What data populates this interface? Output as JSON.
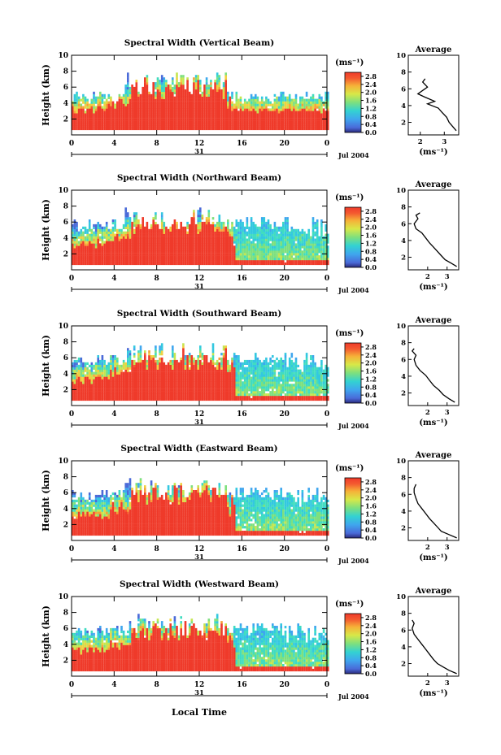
{
  "figure": {
    "x_axis_title": "Local Time",
    "date_text": "Jul 2004",
    "day_label": "31",
    "unit_label": "(ms⁻¹)",
    "average_title": "Average"
  },
  "chart_data": [
    {
      "type": "heatmap",
      "title": "Spectral Width (Vertical Beam)",
      "ylabel": "Height (km)",
      "xlim": [
        0,
        24
      ],
      "ylim": [
        0,
        10
      ],
      "x_ticks": [
        "0",
        "4",
        "8",
        "12",
        "16",
        "20",
        "0"
      ],
      "y_ticks": [
        "2",
        "4",
        "6",
        "8",
        "10"
      ],
      "colorbar_ticks": [
        "2.8",
        "2.4",
        "2.0",
        "1.6",
        "1.2",
        "0.8",
        "0.4",
        "0.0"
      ],
      "colorbar_range": [
        0.0,
        3.0
      ],
      "profile": {
        "title": "Average",
        "xlabel": "(ms⁻¹)",
        "x_ticks": [
          "2",
          "3"
        ],
        "y_ticks": [
          "2",
          "4",
          "6",
          "8",
          "10"
        ],
        "xlim": [
          1.5,
          3.6
        ],
        "ylim": [
          0.5,
          10
        ],
        "points": [
          [
            3.5,
            1.0
          ],
          [
            3.35,
            1.5
          ],
          [
            3.2,
            2.0
          ],
          [
            3.1,
            2.6
          ],
          [
            2.9,
            3.2
          ],
          [
            2.75,
            3.7
          ],
          [
            2.3,
            4.2
          ],
          [
            2.6,
            4.5
          ],
          [
            2.2,
            5.0
          ],
          [
            1.9,
            5.4
          ],
          [
            2.1,
            5.8
          ],
          [
            2.3,
            6.2
          ],
          [
            2.1,
            6.8
          ],
          [
            2.2,
            7.2
          ]
        ]
      }
    },
    {
      "type": "heatmap",
      "title": "Spectral Width (Northward Beam)",
      "ylabel": "Height (km)",
      "xlim": [
        0,
        24
      ],
      "ylim": [
        0,
        10
      ],
      "x_ticks": [
        "0",
        "4",
        "8",
        "12",
        "16",
        "20",
        "0"
      ],
      "y_ticks": [
        "2",
        "4",
        "6",
        "8",
        "10"
      ],
      "colorbar_ticks": [
        "2.8",
        "2.4",
        "2.0",
        "1.6",
        "1.2",
        "0.8",
        "0.4",
        "0.0"
      ],
      "colorbar_range": [
        0.0,
        3.0
      ],
      "profile": {
        "title": "Average",
        "xlabel": "(ms⁻¹)",
        "x_ticks": [
          "2",
          "3"
        ],
        "y_ticks": [
          "2",
          "4",
          "6",
          "8",
          "10"
        ],
        "xlim": [
          1.0,
          3.6
        ],
        "ylim": [
          0.5,
          10
        ],
        "points": [
          [
            3.5,
            0.9
          ],
          [
            3.2,
            1.3
          ],
          [
            2.9,
            1.7
          ],
          [
            2.7,
            2.2
          ],
          [
            2.5,
            2.7
          ],
          [
            2.3,
            3.2
          ],
          [
            2.1,
            3.7
          ],
          [
            1.9,
            4.3
          ],
          [
            1.7,
            4.9
          ],
          [
            1.4,
            5.4
          ],
          [
            1.3,
            6.0
          ],
          [
            1.5,
            6.6
          ],
          [
            1.4,
            7.0
          ],
          [
            1.6,
            7.3
          ]
        ]
      }
    },
    {
      "type": "heatmap",
      "title": "Spectral Width (Southward Beam)",
      "ylabel": "Height (km)",
      "xlim": [
        0,
        24
      ],
      "ylim": [
        0,
        10
      ],
      "x_ticks": [
        "0",
        "4",
        "8",
        "12",
        "16",
        "20",
        "0"
      ],
      "y_ticks": [
        "2",
        "4",
        "6",
        "8",
        "10"
      ],
      "colorbar_ticks": [
        "2.8",
        "2.4",
        "2.0",
        "1.6",
        "1.2",
        "0.8",
        "0.4",
        "0.0"
      ],
      "colorbar_range": [
        0.0,
        3.0
      ],
      "profile": {
        "title": "Average",
        "xlabel": "(ms⁻¹)",
        "x_ticks": [
          "2",
          "3"
        ],
        "y_ticks": [
          "2",
          "4",
          "6",
          "8",
          "10"
        ],
        "xlim": [
          1.0,
          3.6
        ],
        "ylim": [
          0.5,
          10
        ],
        "points": [
          [
            3.4,
            0.9
          ],
          [
            3.1,
            1.3
          ],
          [
            2.8,
            1.8
          ],
          [
            2.6,
            2.3
          ],
          [
            2.3,
            2.9
          ],
          [
            2.1,
            3.5
          ],
          [
            1.9,
            4.1
          ],
          [
            1.6,
            4.7
          ],
          [
            1.4,
            5.3
          ],
          [
            1.3,
            6.0
          ],
          [
            1.4,
            6.5
          ],
          [
            1.2,
            7.0
          ],
          [
            1.3,
            7.3
          ]
        ]
      }
    },
    {
      "type": "heatmap",
      "title": "Spectral Width (Eastward Beam)",
      "ylabel": "Height (km)",
      "xlim": [
        0,
        24
      ],
      "ylim": [
        0,
        10
      ],
      "x_ticks": [
        "0",
        "4",
        "8",
        "12",
        "16",
        "20",
        "0"
      ],
      "y_ticks": [
        "2",
        "4",
        "6",
        "8",
        "10"
      ],
      "colorbar_ticks": [
        "2.8",
        "2.4",
        "2.0",
        "1.6",
        "1.2",
        "0.8",
        "0.4",
        "0.0"
      ],
      "colorbar_range": [
        0.0,
        3.0
      ],
      "profile": {
        "title": "Average",
        "xlabel": "(ms⁻¹)",
        "x_ticks": [
          "2",
          "3"
        ],
        "y_ticks": [
          "2",
          "4",
          "6",
          "8",
          "10"
        ],
        "xlim": [
          1.0,
          3.6
        ],
        "ylim": [
          0.5,
          10
        ],
        "points": [
          [
            3.5,
            0.8
          ],
          [
            3.1,
            1.2
          ],
          [
            2.7,
            1.6
          ],
          [
            2.5,
            2.1
          ],
          [
            2.3,
            2.6
          ],
          [
            2.1,
            3.1
          ],
          [
            1.9,
            3.7
          ],
          [
            1.7,
            4.3
          ],
          [
            1.5,
            4.9
          ],
          [
            1.4,
            5.5
          ],
          [
            1.3,
            6.2
          ],
          [
            1.3,
            6.7
          ],
          [
            1.4,
            7.2
          ]
        ]
      }
    },
    {
      "type": "heatmap",
      "title": "Spectral Width (Westward Beam)",
      "ylabel": "Height (km)",
      "xlim": [
        0,
        24
      ],
      "ylim": [
        0,
        10
      ],
      "x_ticks": [
        "0",
        "4",
        "8",
        "12",
        "16",
        "20",
        "0"
      ],
      "y_ticks": [
        "2",
        "4",
        "6",
        "8",
        "10"
      ],
      "colorbar_ticks": [
        "2.8",
        "2.4",
        "2.0",
        "1.6",
        "1.2",
        "0.8",
        "0.4",
        "0.0"
      ],
      "colorbar_range": [
        0.0,
        3.0
      ],
      "profile": {
        "title": "Average",
        "xlabel": "(ms⁻¹)",
        "x_ticks": [
          "2",
          "3"
        ],
        "y_ticks": [
          "2",
          "4",
          "6",
          "8",
          "10"
        ],
        "xlim": [
          1.0,
          3.6
        ],
        "ylim": [
          0.5,
          10
        ],
        "points": [
          [
            3.5,
            0.8
          ],
          [
            3.1,
            1.2
          ],
          [
            2.8,
            1.6
          ],
          [
            2.5,
            2.0
          ],
          [
            2.3,
            2.5
          ],
          [
            2.1,
            3.1
          ],
          [
            1.9,
            3.7
          ],
          [
            1.7,
            4.3
          ],
          [
            1.5,
            4.9
          ],
          [
            1.3,
            5.5
          ],
          [
            1.2,
            6.2
          ],
          [
            1.3,
            6.8
          ],
          [
            1.2,
            7.2
          ]
        ]
      }
    }
  ]
}
